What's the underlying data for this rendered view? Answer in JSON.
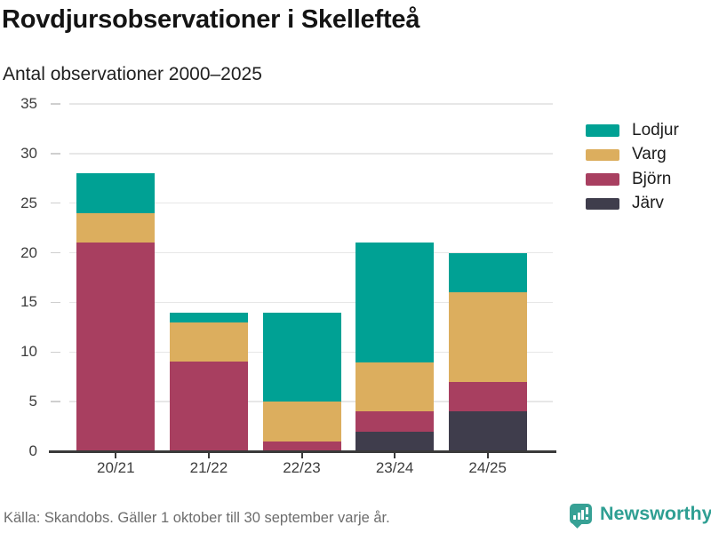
{
  "header": {
    "title": "Rovdjursobservationer i Skellefteå",
    "subtitle": "Antal observationer 2000–2025"
  },
  "chart_data": {
    "type": "bar",
    "stacked": true,
    "title": "Rovdjursobservationer i Skellefteå",
    "subtitle": "Antal observationer 2000–2025",
    "categories": [
      "20/21",
      "21/22",
      "22/23",
      "23/24",
      "24/25"
    ],
    "series": [
      {
        "name": "Järv",
        "color": "#3f3d4c",
        "values": [
          0,
          0,
          0,
          2,
          4
        ]
      },
      {
        "name": "Björn",
        "color": "#a83f60",
        "values": [
          21,
          9,
          1,
          2,
          3
        ]
      },
      {
        "name": "Varg",
        "color": "#dcae5e",
        "values": [
          3,
          4,
          4,
          5,
          9
        ]
      },
      {
        "name": "Lodjur",
        "color": "#00a194",
        "values": [
          4,
          1,
          9,
          12,
          4
        ]
      }
    ],
    "totals": [
      28,
      14,
      14,
      21,
      20
    ],
    "legend_order": [
      "Lodjur",
      "Varg",
      "Björn",
      "Järv"
    ],
    "legend_position": "right",
    "xlabel": "",
    "ylabel": "",
    "ylim": [
      0,
      35
    ],
    "yticks": [
      0,
      5,
      10,
      15,
      20,
      25,
      30,
      35
    ],
    "grid": true,
    "grid_color": "#e7e7e7",
    "axis_color": "#3a3a3a"
  },
  "footer": {
    "source_note": "Källa: Skandobs. Gäller 1 oktober till 30 september varje år.",
    "brand": {
      "name": "Newsworthy",
      "icon": "bar-chart-speech-bubble-icon",
      "color": "#37a195"
    }
  }
}
